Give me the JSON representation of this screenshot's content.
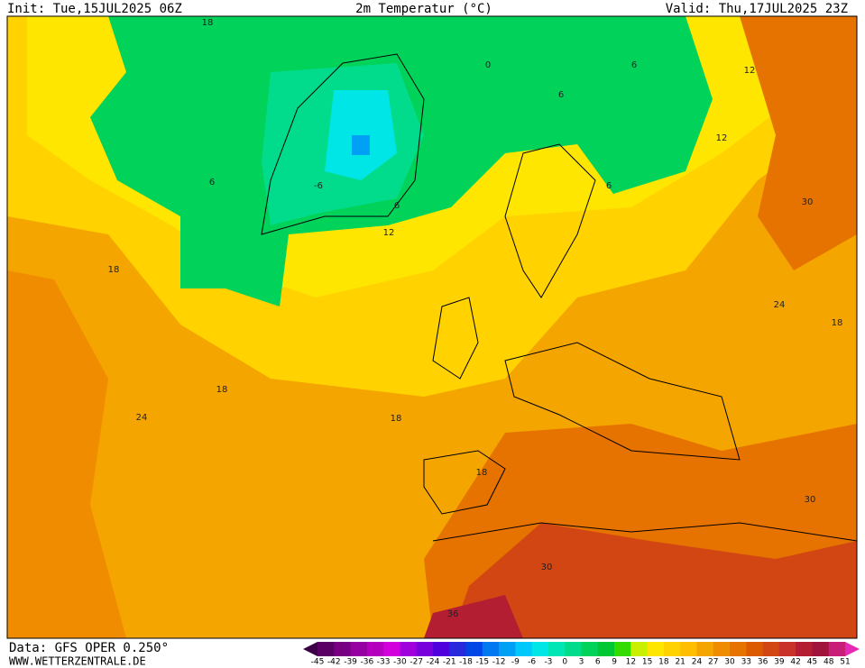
{
  "header": {
    "init": "Init: Tue,15JUL2025 06Z",
    "title": "2m Temperatur (°C)",
    "valid": "Valid: Thu,17JUL2025 23Z"
  },
  "map": {
    "contour_labels": [
      18,
      0,
      6,
      12,
      6,
      12,
      6,
      -6,
      6,
      6,
      30,
      12,
      18,
      24,
      18,
      18,
      24,
      18,
      18,
      30,
      30,
      36
    ]
  },
  "footer": {
    "source": "Data: GFS OPER 0.250°",
    "website": "WWW.WETTERZENTRALE.DE"
  },
  "legend": {
    "labels": [
      -45,
      -42,
      -39,
      -36,
      -33,
      -30,
      -27,
      -24,
      -21,
      -18,
      -15,
      -12,
      -9,
      -6,
      -3,
      0,
      3,
      6,
      9,
      12,
      15,
      18,
      21,
      24,
      27,
      30,
      33,
      36,
      39,
      42,
      45,
      48,
      51
    ],
    "colors": [
      "#3c0046",
      "#5a0064",
      "#780082",
      "#9600a0",
      "#b400be",
      "#d200dc",
      "#a000dc",
      "#7800dc",
      "#5000dc",
      "#2828dc",
      "#0046e6",
      "#0078f0",
      "#00a0f5",
      "#00c8fa",
      "#00e6e6",
      "#00e6b4",
      "#00dc8c",
      "#00d25a",
      "#00c832",
      "#32dc00",
      "#c8f000",
      "#ffe600",
      "#ffd200",
      "#ffbe00",
      "#f5a500",
      "#f08c00",
      "#e67300",
      "#dc5a00",
      "#d24614",
      "#c83228",
      "#b41e32",
      "#a0143c",
      "#c81e78",
      "#e628b4"
    ]
  }
}
